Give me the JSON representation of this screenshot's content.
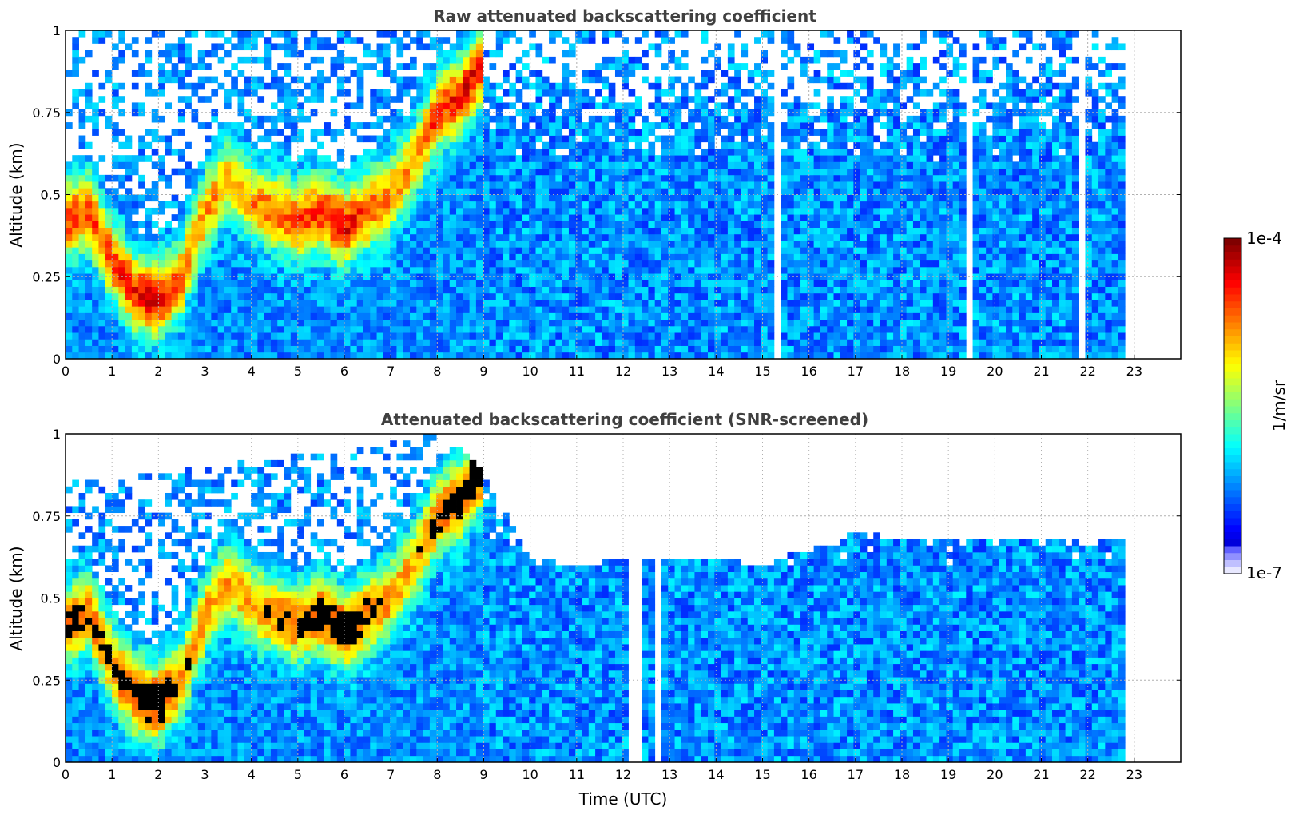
{
  "colors": {
    "jet": [
      "#00008f",
      "#0000ff",
      "#0080ff",
      "#00ffff",
      "#80ff80",
      "#ffff00",
      "#ff8000",
      "#ff0000",
      "#800000"
    ],
    "low_end": "#e8e8ff",
    "saturated": "#000000",
    "background": "#ffffff"
  },
  "colorbar": {
    "min_label": "1e-7",
    "max_label": "1e-4",
    "unit_label": "1/m/sr",
    "scale": "log",
    "range": [
      1e-07,
      0.0001
    ]
  },
  "chart_data": [
    {
      "type": "heatmap",
      "title": "Raw attenuated backscattering coefficient",
      "xlabel": "",
      "ylabel": "Altitude (km)",
      "xlim": [
        0,
        24
      ],
      "ylim": [
        0,
        1
      ],
      "xticks": [
        "0",
        "1",
        "2",
        "3",
        "4",
        "5",
        "6",
        "7",
        "8",
        "9",
        "10",
        "11",
        "12",
        "13",
        "14",
        "15",
        "16",
        "17",
        "18",
        "19",
        "20",
        "21",
        "22",
        "23"
      ],
      "yticks": [
        "0",
        "0.25",
        "0.5",
        "0.75",
        "1"
      ],
      "ytick_values": [
        0,
        0.25,
        0.5,
        0.75,
        1
      ],
      "grid": true,
      "data_end_hour": 22.8,
      "layer_profile": {
        "time_utc": [
          0,
          0.5,
          1.0,
          1.5,
          2.0,
          2.5,
          3.0,
          3.5,
          4.0,
          4.5,
          5.0,
          5.5,
          6.0,
          6.5,
          7.0,
          7.5,
          8.0,
          8.5,
          9.0
        ],
        "layer_altitude_km": [
          0.42,
          0.45,
          0.3,
          0.2,
          0.18,
          0.25,
          0.45,
          0.55,
          0.48,
          0.45,
          0.42,
          0.45,
          0.4,
          0.45,
          0.5,
          0.6,
          0.75,
          0.8,
          0.9
        ],
        "log10_peak": [
          -4.5,
          -4.6,
          -4.6,
          -4.4,
          -4.3,
          -4.7,
          -4.8,
          -4.9,
          -4.8,
          -4.7,
          -4.6,
          -4.5,
          -4.3,
          -4.6,
          -4.8,
          -4.9,
          -4.5,
          -4.4,
          -4.3
        ]
      },
      "background_log10": -6.2,
      "screened": false
    },
    {
      "type": "heatmap",
      "title": "Attenuated backscattering coefficient (SNR-screened)",
      "xlabel": "Time (UTC)",
      "ylabel": "Altitude (km)",
      "xlim": [
        0,
        24
      ],
      "ylim": [
        0,
        1
      ],
      "xticks": [
        "0",
        "1",
        "2",
        "3",
        "4",
        "5",
        "6",
        "7",
        "8",
        "9",
        "10",
        "11",
        "12",
        "13",
        "14",
        "15",
        "16",
        "17",
        "18",
        "19",
        "20",
        "21",
        "22",
        "23"
      ],
      "yticks": [
        "0",
        "0.25",
        "0.5",
        "0.75",
        "1"
      ],
      "ytick_values": [
        0,
        0.25,
        0.5,
        0.75,
        1
      ],
      "grid": true,
      "data_end_hour": 22.8,
      "layer_profile": {
        "time_utc": [
          0,
          0.5,
          1.0,
          1.5,
          2.0,
          2.5,
          3.0,
          3.5,
          4.0,
          4.5,
          5.0,
          5.5,
          6.0,
          6.5,
          7.0,
          7.5,
          8.0,
          8.5,
          9.0
        ],
        "layer_altitude_km": [
          0.42,
          0.45,
          0.3,
          0.2,
          0.18,
          0.25,
          0.45,
          0.55,
          0.48,
          0.45,
          0.42,
          0.45,
          0.4,
          0.45,
          0.5,
          0.6,
          0.75,
          0.8,
          0.9
        ],
        "log10_peak": [
          -4.5,
          -4.6,
          -4.6,
          -4.4,
          -4.3,
          -4.7,
          -4.8,
          -4.9,
          -4.8,
          -4.7,
          -4.6,
          -4.5,
          -4.3,
          -4.6,
          -4.8,
          -4.9,
          -4.5,
          -4.4,
          -4.3
        ]
      },
      "signal_top_km": {
        "time_utc": [
          0,
          3,
          6,
          8,
          9,
          10,
          11,
          12,
          13,
          14,
          15,
          16,
          17,
          18,
          19,
          20,
          21,
          22,
          22.8
        ],
        "altitude_km": [
          0.85,
          0.9,
          0.95,
          1.0,
          0.9,
          0.62,
          0.6,
          0.62,
          0.62,
          0.62,
          0.6,
          0.65,
          0.7,
          0.68,
          0.68,
          0.68,
          0.68,
          0.68,
          0.68
        ]
      },
      "background_log10": -6.2,
      "screened": true
    }
  ]
}
